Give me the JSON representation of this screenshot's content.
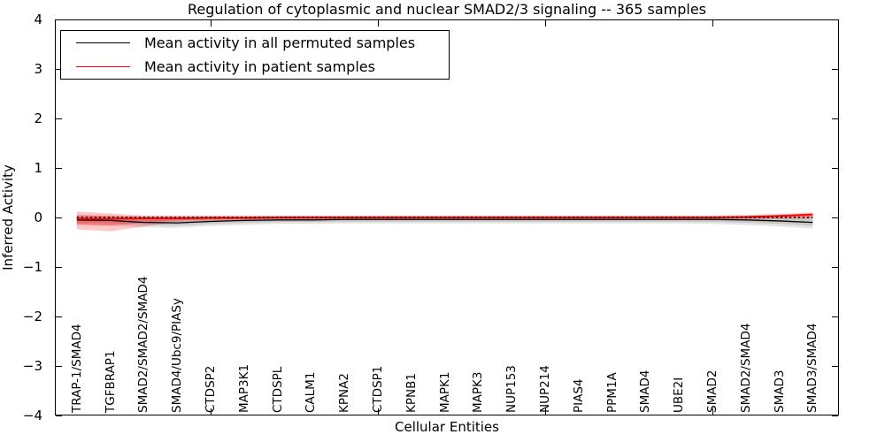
{
  "title": "Regulation of cytoplasmic and nuclear SMAD2/3 signaling -- 365 samples",
  "legend": {
    "items": [
      {
        "label": "Mean activity in all permuted samples",
        "color": "#000000"
      },
      {
        "label": "Mean activity in patient samples",
        "color": "#ff0000"
      }
    ]
  },
  "colors": {
    "permuted_line": "#000000",
    "patient_line": "#ff0000",
    "permuted_band": "#808080",
    "patient_band": "#ff0000",
    "background": "#ffffff"
  },
  "chart_data": {
    "type": "line",
    "title": "Regulation of cytoplasmic and nuclear SMAD2/3 signaling -- 365 samples",
    "xlabel": "Cellular Entities",
    "ylabel": "Inferred Activity",
    "ylim": [
      -4,
      4
    ],
    "grid": false,
    "legend_position": "upper left",
    "y_ticks": [
      4,
      3,
      2,
      1,
      0,
      -1,
      -2,
      -3,
      -4
    ],
    "x_major_tick_positions": [
      5,
      10,
      15,
      20
    ],
    "zero_line": {
      "y": 0,
      "style": "dotted",
      "color": "#000000"
    },
    "categories": [
      "TRAP-1/SMAD4",
      "TGFBRAP1",
      "SMAD2/SMAD2/SMAD4",
      "SMAD4/Ubc9/PIASy",
      "CTDSP2",
      "MAP3K1",
      "CTDSPL",
      "CALM1",
      "KPNA2",
      "CTDSP1",
      "KPNB1",
      "MAPK1",
      "MAPK3",
      "NUP153",
      "NUP214",
      "PIAS4",
      "PPM1A",
      "SMAD4",
      "UBE2I",
      "SMAD2",
      "SMAD2/SMAD4",
      "SMAD3",
      "SMAD3/SMAD4"
    ],
    "series": [
      {
        "name": "Mean activity in all permuted samples",
        "color": "#000000",
        "values": [
          -0.05,
          -0.06,
          -0.1,
          -0.11,
          -0.08,
          -0.06,
          -0.05,
          -0.05,
          -0.04,
          -0.04,
          -0.04,
          -0.04,
          -0.04,
          -0.04,
          -0.04,
          -0.04,
          -0.04,
          -0.04,
          -0.04,
          -0.04,
          -0.05,
          -0.07,
          -0.1
        ]
      },
      {
        "name": "Mean activity in patient samples",
        "color": "#ff0000",
        "values": [
          -0.03,
          -0.03,
          -0.02,
          -0.02,
          -0.01,
          -0.01,
          0.0,
          0.0,
          0.0,
          0.0,
          0.0,
          0.0,
          0.0,
          0.0,
          0.0,
          0.0,
          0.0,
          0.0,
          0.0,
          0.0,
          0.01,
          0.03,
          0.06
        ]
      }
    ],
    "bands": [
      {
        "name": "permuted-samples-spread",
        "color": "#808080",
        "series_ref": 0,
        "upper": [
          0.04,
          0.04,
          0.03,
          0.03,
          0.03,
          0.03,
          0.03,
          0.03,
          0.03,
          0.03,
          0.03,
          0.03,
          0.03,
          0.03,
          0.03,
          0.03,
          0.03,
          0.03,
          0.03,
          0.03,
          0.04,
          0.05,
          0.06
        ],
        "lower": [
          -0.14,
          -0.16,
          -0.2,
          -0.21,
          -0.17,
          -0.15,
          -0.13,
          -0.13,
          -0.12,
          -0.12,
          -0.12,
          -0.12,
          -0.12,
          -0.12,
          -0.12,
          -0.12,
          -0.12,
          -0.12,
          -0.12,
          -0.13,
          -0.15,
          -0.18,
          -0.22
        ]
      },
      {
        "name": "patient-samples-spread",
        "color": "#ff0000",
        "series_ref": 1,
        "upper": [
          0.12,
          0.08,
          0.04,
          0.04,
          0.04,
          0.04,
          0.04,
          0.04,
          0.04,
          0.04,
          0.04,
          0.04,
          0.04,
          0.04,
          0.04,
          0.04,
          0.04,
          0.04,
          0.04,
          0.04,
          0.05,
          0.07,
          0.1
        ],
        "lower": [
          -0.24,
          -0.28,
          -0.18,
          -0.09,
          -0.07,
          -0.06,
          -0.06,
          -0.06,
          -0.05,
          -0.05,
          -0.05,
          -0.05,
          -0.05,
          -0.05,
          -0.05,
          -0.05,
          -0.05,
          -0.05,
          -0.05,
          -0.05,
          -0.04,
          -0.03,
          -0.02
        ]
      }
    ]
  }
}
